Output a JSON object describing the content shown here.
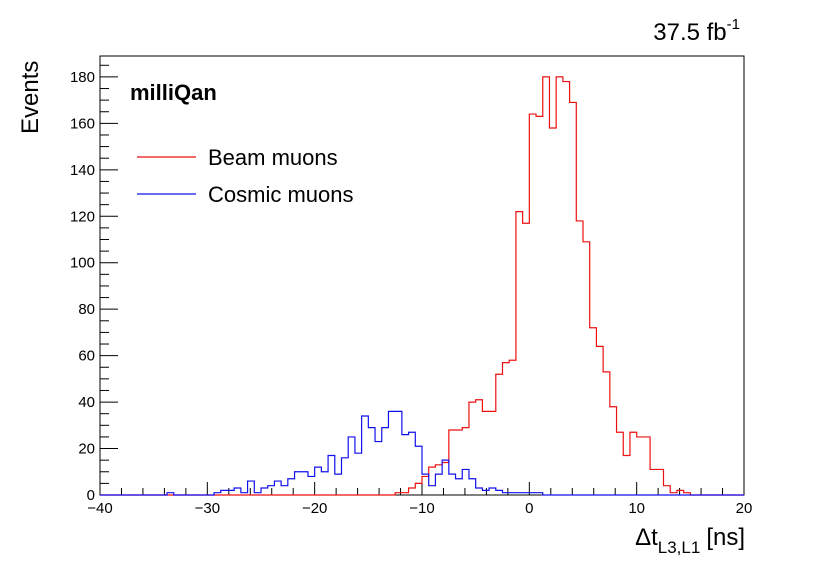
{
  "chart_data": {
    "type": "histogram",
    "experiment_label": "milliQan",
    "luminosity": {
      "value": "37.5 fb",
      "superscript": "-1"
    },
    "xlabel": {
      "prefix": "Δt",
      "subscript": "L3,L1",
      "unit": "[ns]"
    },
    "ylabel": "Events",
    "xlim": [
      -40,
      20
    ],
    "ylim": [
      0,
      189
    ],
    "x_ticks": [
      -40,
      -30,
      -20,
      -10,
      0,
      10,
      20
    ],
    "y_ticks": [
      0,
      20,
      40,
      60,
      80,
      100,
      120,
      140,
      160,
      180
    ],
    "x_tick_labels": [
      "−40",
      "−30",
      "−20",
      "−10",
      "0",
      "10",
      "20"
    ],
    "y_tick_labels": [
      "0",
      "20",
      "40",
      "60",
      "80",
      "100",
      "120",
      "140",
      "160",
      "180"
    ],
    "bin_width": 0.625,
    "legend": {
      "position": "top-left"
    },
    "series": [
      {
        "name": "Beam muons",
        "color": "#ee1111",
        "bins": [
          [
            -12.5,
            1
          ],
          [
            -11.875,
            1
          ],
          [
            -11.25,
            3
          ],
          [
            -10.625,
            5
          ],
          [
            -10.0,
            8
          ],
          [
            -9.375,
            12
          ],
          [
            -8.75,
            13
          ],
          [
            -8.125,
            14
          ],
          [
            -7.5,
            28
          ],
          [
            -6.875,
            28
          ],
          [
            -6.25,
            29
          ],
          [
            -5.625,
            40
          ],
          [
            -5.0,
            41
          ],
          [
            -4.375,
            36
          ],
          [
            -3.75,
            36
          ],
          [
            -3.125,
            52
          ],
          [
            -2.5,
            57
          ],
          [
            -1.875,
            58
          ],
          [
            -1.25,
            122
          ],
          [
            -0.625,
            117
          ],
          [
            0.0,
            164
          ],
          [
            0.625,
            163
          ],
          [
            1.25,
            180
          ],
          [
            1.875,
            158
          ],
          [
            2.5,
            180
          ],
          [
            3.125,
            178
          ],
          [
            3.75,
            169
          ],
          [
            4.375,
            118
          ],
          [
            5.0,
            109
          ],
          [
            5.625,
            72
          ],
          [
            6.25,
            64
          ],
          [
            6.875,
            53
          ],
          [
            7.5,
            38
          ],
          [
            8.125,
            27
          ],
          [
            8.75,
            17
          ],
          [
            9.375,
            27
          ],
          [
            10.0,
            25
          ],
          [
            10.625,
            25
          ],
          [
            11.25,
            11
          ],
          [
            11.875,
            11
          ],
          [
            12.5,
            4
          ],
          [
            13.125,
            1
          ],
          [
            13.75,
            2
          ],
          [
            14.375,
            1
          ]
        ]
      },
      {
        "name": "Cosmic muons",
        "color": "#1111ee",
        "bins": [
          [
            -33.75,
            1
          ],
          [
            -29.375,
            1
          ],
          [
            -28.75,
            2
          ],
          [
            -28.125,
            2
          ],
          [
            -27.5,
            3
          ],
          [
            -26.875,
            1
          ],
          [
            -26.25,
            6
          ],
          [
            -25.625,
            1
          ],
          [
            -25.0,
            3
          ],
          [
            -24.375,
            4
          ],
          [
            -23.75,
            6
          ],
          [
            -23.125,
            4
          ],
          [
            -22.5,
            7
          ],
          [
            -21.875,
            10
          ],
          [
            -21.25,
            10
          ],
          [
            -20.625,
            8
          ],
          [
            -20.0,
            12
          ],
          [
            -19.375,
            10
          ],
          [
            -18.75,
            17
          ],
          [
            -18.125,
            9
          ],
          [
            -17.5,
            16
          ],
          [
            -16.875,
            25
          ],
          [
            -16.25,
            18
          ],
          [
            -15.625,
            34
          ],
          [
            -15.0,
            29
          ],
          [
            -14.375,
            23
          ],
          [
            -13.75,
            29
          ],
          [
            -13.125,
            36
          ],
          [
            -12.5,
            36
          ],
          [
            -11.875,
            26
          ],
          [
            -11.25,
            27
          ],
          [
            -10.625,
            21
          ],
          [
            -10.0,
            9
          ],
          [
            -9.375,
            4
          ],
          [
            -8.75,
            9
          ],
          [
            -8.125,
            15
          ],
          [
            -7.5,
            9
          ],
          [
            -6.875,
            7
          ],
          [
            -6.25,
            11
          ],
          [
            -5.625,
            7
          ],
          [
            -5.0,
            3
          ],
          [
            -4.375,
            2
          ],
          [
            -3.75,
            3
          ],
          [
            -3.125,
            2
          ],
          [
            -2.5,
            1
          ],
          [
            -1.875,
            1
          ],
          [
            -1.25,
            1
          ],
          [
            -0.625,
            1
          ],
          [
            0.0,
            1
          ],
          [
            0.625,
            1
          ]
        ]
      }
    ]
  }
}
